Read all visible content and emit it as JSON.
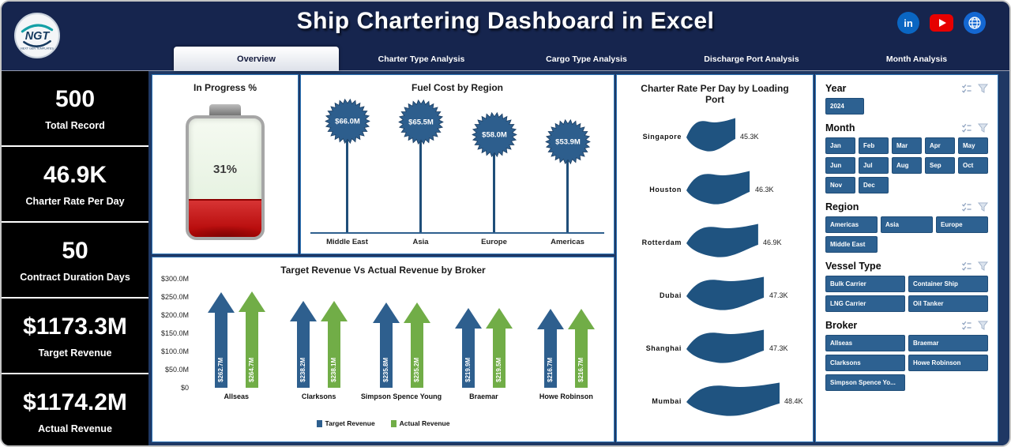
{
  "theme": {
    "header_navy": "#16254e",
    "background_navy": "#1f3864",
    "panel_border_blue": "#2e75b6",
    "slicer_blue": "#2d6191",
    "kpi_black": "#000000",
    "target_blue": "#2e5f8e",
    "actual_green": "#71ad47"
  },
  "header": {
    "title": "Ship Chartering Dashboard in Excel",
    "logo": {
      "text": "NGT",
      "subtext": "NEXT GEN TEMPLATES"
    },
    "social": [
      {
        "name": "linkedin-icon",
        "label": "in"
      },
      {
        "name": "youtube-icon"
      },
      {
        "name": "globe-icon"
      }
    ]
  },
  "tabs": [
    {
      "label": "Overview",
      "active": true
    },
    {
      "label": "Charter Type Analysis",
      "active": false
    },
    {
      "label": "Cargo Type Analysis",
      "active": false
    },
    {
      "label": "Discharge Port Analysis",
      "active": false
    },
    {
      "label": "Month Analysis",
      "active": false
    }
  ],
  "kpis": [
    {
      "value": "500",
      "label": "Total Record"
    },
    {
      "value": "46.9K",
      "label": "Charter Rate  Per Day"
    },
    {
      "value": "50",
      "label": "Contract Duration Days"
    },
    {
      "value": "$1173.3M",
      "label": "Target Revenue"
    },
    {
      "value": "$1174.2M",
      "label": "Actual Revenue"
    }
  ],
  "chart_data": [
    {
      "type": "gauge",
      "title": "In Progress %",
      "value": 31,
      "unit": "%"
    },
    {
      "type": "lollipop",
      "title": "Fuel Cost by Region",
      "categories": [
        "Middle East",
        "Asia",
        "Europe",
        "Americas"
      ],
      "values": [
        66.0,
        65.5,
        58.0,
        53.9
      ],
      "labels": [
        "$66.0M",
        "$65.5M",
        "$58.0M",
        "$53.9M"
      ],
      "ylim": [
        0,
        66
      ],
      "marker_color": "#2d5e8d"
    },
    {
      "type": "bar",
      "title": "Target Revenue Vs Actual Revenue by Broker",
      "categories": [
        "Allseas",
        "Clarksons",
        "Simpson Spence Young",
        "Braemar",
        "Howe Robinson"
      ],
      "series": [
        {
          "name": "Target Revenue",
          "color": "#2e5f8e",
          "values": [
            262.7,
            238.2,
            235.8,
            219.9,
            216.7
          ],
          "labels": [
            "$262.7M",
            "$238.2M",
            "$235.8M",
            "$219.9M",
            "$216.7M"
          ]
        },
        {
          "name": "Actual Revenue",
          "color": "#71ad47",
          "values": [
            264.7,
            238.1,
            235.2,
            219.5,
            216.7
          ],
          "labels": [
            "$264.7M",
            "$238.1M",
            "$235.2M",
            "$219.5M",
            "$216.7M"
          ]
        }
      ],
      "y_ticks": [
        "$300.0M",
        "$250.0M",
        "$200.0M",
        "$150.0M",
        "$100.0M",
        "$50.0M",
        "$0"
      ],
      "ylim": [
        0,
        300
      ],
      "legend_position": "bottom"
    },
    {
      "type": "bar-horizontal",
      "title": "Charter Rate Per Day by Loading Port",
      "categories": [
        "Singapore",
        "Houston",
        "Rotterdam",
        "Dubai",
        "Shanghai",
        "Mumbai"
      ],
      "values": [
        45.3,
        46.3,
        46.9,
        47.3,
        47.3,
        48.4
      ],
      "labels": [
        "45.3K",
        "46.3K",
        "46.9K",
        "47.3K",
        "47.3K",
        "48.4K"
      ],
      "color": "#1f5380"
    }
  ],
  "filters": [
    {
      "title": "Year",
      "options": [
        "2024"
      ]
    },
    {
      "title": "Month",
      "options": [
        "Jan",
        "Feb",
        "Mar",
        "Apr",
        "May",
        "Jun",
        "Jul",
        "Aug",
        "Sep",
        "Oct",
        "Nov",
        "Dec"
      ]
    },
    {
      "title": "Region",
      "options": [
        "Americas",
        "Asia",
        "Europe",
        "Middle East"
      ]
    },
    {
      "title": "Vessel Type",
      "options": [
        "Bulk Carrier",
        "Container Ship",
        "LNG Carrier",
        "Oil Tanker"
      ]
    },
    {
      "title": "Broker",
      "options": [
        "Allseas",
        "Braemar",
        "Clarksons",
        "Howe Robinson",
        "Simpson Spence Yo..."
      ]
    }
  ]
}
